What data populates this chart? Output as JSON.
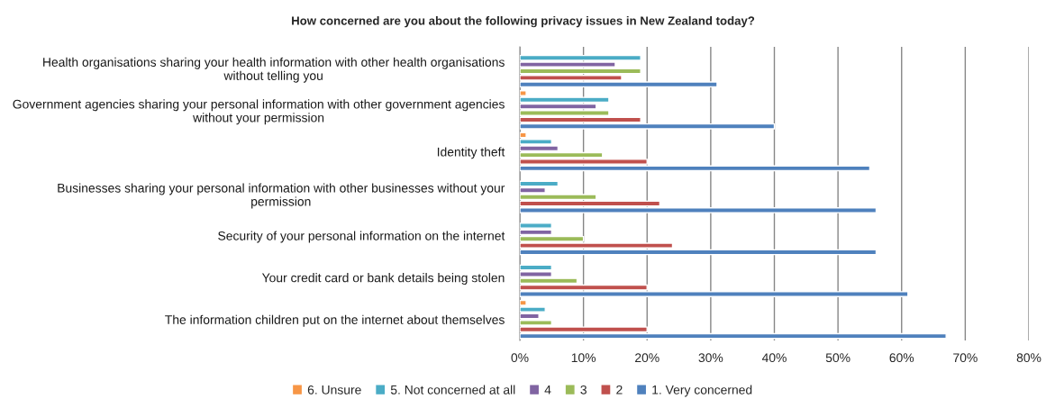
{
  "chart_data": {
    "type": "bar",
    "orientation": "horizontal",
    "title": "How concerned are you about the following privacy issues in New Zealand today?",
    "categories": [
      "Health organisations sharing your health information with other health organisations without telling you",
      "Government agencies sharing your personal information with other government agencies without your permission",
      "Identity theft",
      "Businesses sharing your personal information with other businesses without your permission",
      "Security of your personal information on the internet",
      "Your credit card or bank details being stolen",
      "The information children put on the internet about themselves"
    ],
    "series": [
      {
        "name": "6. Unsure",
        "color": "#f79646",
        "values": [
          null,
          1,
          1,
          null,
          null,
          null,
          1
        ]
      },
      {
        "name": "5. Not concerned at all",
        "color": "#4bacc6",
        "values": [
          19,
          14,
          5,
          6,
          5,
          5,
          4
        ]
      },
      {
        "name": "4",
        "color": "#8064a2",
        "values": [
          15,
          12,
          6,
          4,
          5,
          5,
          3
        ]
      },
      {
        "name": "3",
        "color": "#9bbb59",
        "values": [
          19,
          14,
          13,
          12,
          10,
          9,
          5
        ]
      },
      {
        "name": "2",
        "color": "#c0504d",
        "values": [
          16,
          19,
          20,
          22,
          24,
          20,
          20
        ]
      },
      {
        "name": "1. Very concerned",
        "color": "#4f81bd",
        "values": [
          31,
          40,
          55,
          56,
          56,
          61,
          67
        ]
      }
    ],
    "xlim": [
      0,
      80
    ],
    "xticks": [
      {
        "value": 0,
        "label": "0%"
      },
      {
        "value": 10,
        "label": "10%"
      },
      {
        "value": 20,
        "label": "20%"
      },
      {
        "value": 30,
        "label": "30%"
      },
      {
        "value": 40,
        "label": "40%"
      },
      {
        "value": 50,
        "label": "50%"
      },
      {
        "value": 60,
        "label": "60%"
      },
      {
        "value": 70,
        "label": "70%"
      },
      {
        "value": 80,
        "label": "80%"
      }
    ],
    "grid": "x",
    "legend": "bottom"
  }
}
